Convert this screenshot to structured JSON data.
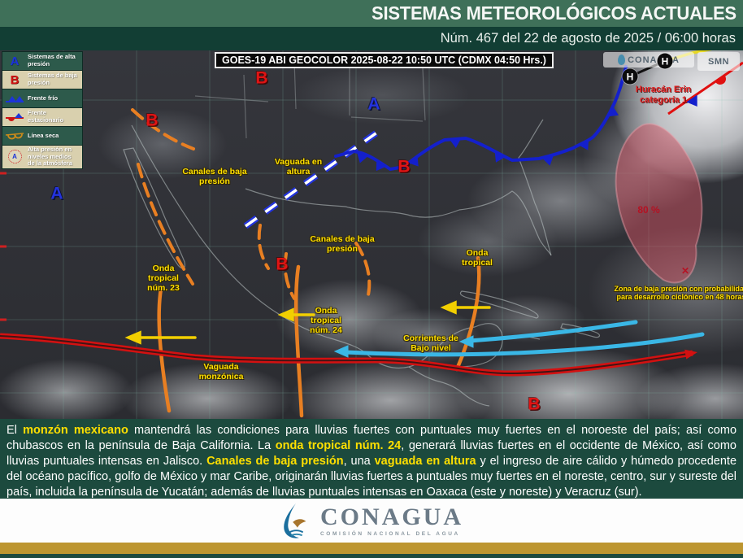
{
  "header": {
    "title": "SISTEMAS METEOROLÓGICOS ACTUALES",
    "subtitle": "Núm. 467 del 22 de agosto de 2025 / 06:00 horas"
  },
  "map": {
    "satellite_caption": "GOES-19 ABI GEOCOLOR 2025-08-22 10:50 UTC (CDMX 04:50 Hrs.)",
    "watermarks": {
      "conagua": "CONAGUA",
      "smn": "SMN"
    },
    "symbols": {
      "high": "A",
      "low": "B",
      "hurricane": "H",
      "x_marker": "✕"
    },
    "labels": {
      "canales_nw": "Canales de baja presión",
      "vaguada_altura": "Vaguada en altura",
      "canales_centro": "Canales de baja presión",
      "onda_23": "Onda tropical núm. 23",
      "onda_24": "Onda tropical núm. 24",
      "onda_este": "Onda tropical",
      "corrientes": "Corrientes de Bajo nivel",
      "vaguada_monzonica": "Vaguada monzónica",
      "zona_desarrollo": "Zona de baja presión con probabilidad para desarrollo ciclónico en 48 horas",
      "huracan": "Huracán Erin categoría 1",
      "probabilidad": "80 %"
    },
    "colors": {
      "cold_front": "#1420cc",
      "trough_red": "#d31111",
      "onda_orange": "#e87f22",
      "label_yellow": "#ffdf00",
      "low_level_cyan": "#3ab7e6",
      "dev_zone_pink": "rgba(206,80,96,0.5)"
    }
  },
  "legend": {
    "items": [
      {
        "icon": "high-pressure-letter",
        "label": "Sistemas de alta presión"
      },
      {
        "icon": "low-pressure-letter",
        "label": "Sistemas de baja presión"
      },
      {
        "icon": "cold-front",
        "label": "Frente frío"
      },
      {
        "icon": "stationary-front",
        "label": "Frente estacionario"
      },
      {
        "icon": "dry-line",
        "label": "Línea seca"
      },
      {
        "icon": "mid-level-high",
        "label": "Alta presión en niveles medios de la atmósfera"
      }
    ]
  },
  "summary": {
    "segments": [
      {
        "text": "El ",
        "highlight": false
      },
      {
        "text": "monzón mexicano",
        "highlight": true
      },
      {
        "text": " mantendrá las condiciones para lluvias fuertes con puntuales muy fuertes en el noroeste del país; así como chubascos en la península de Baja California. La ",
        "highlight": false
      },
      {
        "text": "onda tropical núm. 24",
        "highlight": true
      },
      {
        "text": ", generará lluvias fuertes en el occidente de México, así como lluvias puntuales intensas en Jalisco. ",
        "highlight": false
      },
      {
        "text": "Canales de baja presión",
        "highlight": true
      },
      {
        "text": ", una ",
        "highlight": false
      },
      {
        "text": "vaguada en altura",
        "highlight": true
      },
      {
        "text": " y el ingreso de aire cálido y húmedo procedente del océano pacífico, golfo de México y mar Caribe, originarán lluvias fuertes a puntuales muy fuertes en el noreste, centro, sur y sureste del país, incluida la península de Yucatán; además de lluvias puntuales intensas en Oaxaca (este y noreste) y Veracruz (sur).",
        "highlight": false
      }
    ]
  },
  "footer": {
    "brand": "CONAGUA",
    "brand_sub": "COMISIÓN NACIONAL DEL AGUA"
  }
}
